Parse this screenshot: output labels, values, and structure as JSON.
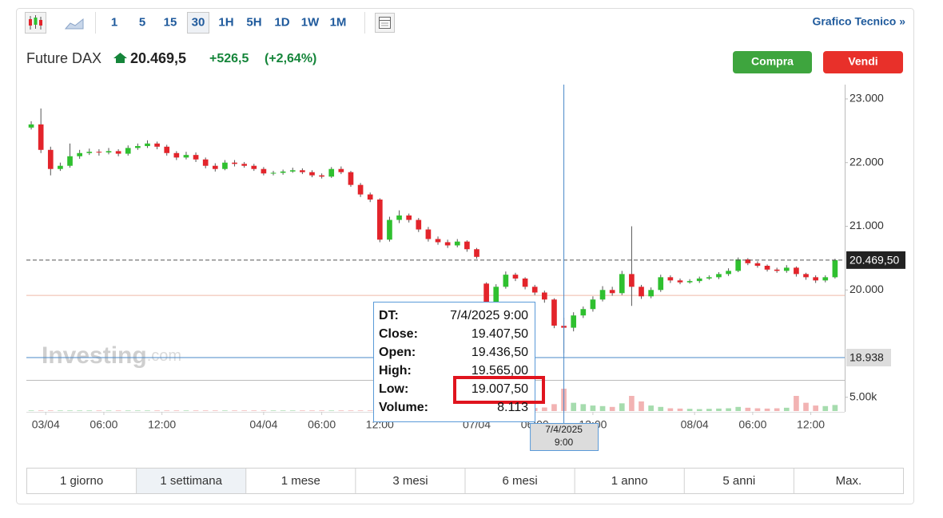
{
  "toolbar": {
    "intervals": [
      "1",
      "5",
      "15",
      "30",
      "1H",
      "5H",
      "1D",
      "1W",
      "1M"
    ],
    "selected_interval": 3,
    "link": "Grafico Tecnico »"
  },
  "header": {
    "name": "Future DAX",
    "price": "20.469,5",
    "change": "+526,5",
    "change_pct": "(+2,64%)",
    "buttons": [
      "Compra",
      "Vendi"
    ]
  },
  "chart_data": {
    "type": "candlestick",
    "x": [
      -1.5,
      -0.5,
      0.5,
      1.5,
      2.5,
      3.5,
      4.5,
      5.5,
      6.5,
      7.5,
      8.5,
      9.5,
      10.5,
      11.5,
      12.5,
      13.5,
      14.5,
      15.5,
      16.5,
      17.5,
      18.5,
      19.5,
      20.5,
      21.5,
      22.5,
      23.5,
      24.5,
      25.5,
      26.5,
      27.5,
      28.5,
      29.5,
      30.5,
      31.5,
      32.5,
      33.5,
      34.5,
      35.5,
      36.5,
      37.5,
      38.5,
      39.5,
      40.5,
      41.5,
      42.5,
      43.5,
      44.5,
      45.5,
      46.5,
      47.5,
      48.5,
      49.5,
      50.5,
      51.5,
      52.5,
      53.5,
      54.5,
      55.5,
      56.5,
      57.5,
      58.5,
      59.5,
      60.5,
      61.5,
      62.5,
      63.5,
      64.5,
      65.5,
      66.5,
      67.5,
      68.5,
      69.5,
      70.5,
      71.5,
      72.5,
      73.5,
      74.5,
      75.5,
      76.5,
      77.5,
      78.5,
      79.5,
      80.5,
      81.5
    ],
    "open": [
      22550,
      22600,
      22200,
      21900,
      21950,
      22100,
      22150,
      22170,
      22160,
      22180,
      22140,
      22230,
      22260,
      22300,
      22250,
      22150,
      22080,
      22120,
      22050,
      21950,
      21900,
      22000,
      21980,
      21950,
      21900,
      21830,
      21840,
      21860,
      21880,
      21850,
      21800,
      21780,
      21900,
      21850,
      21650,
      21500,
      21420,
      20790,
      21100,
      21170,
      21100,
      20950,
      20800,
      20750,
      20700,
      20760,
      20640,
      20100,
      19790,
      20050,
      20240,
      20180,
      20050,
      19960,
      19850,
      19436.5,
      19407.5,
      19600,
      19700,
      19850,
      20000,
      19950,
      20250,
      20050,
      19900,
      20000,
      20200,
      20150,
      20120,
      20140,
      20180,
      20200,
      20250,
      20300,
      20480,
      20420,
      20380,
      20320,
      20300,
      20350,
      20250,
      20200,
      20150,
      20200
    ],
    "high": [
      22650,
      22850,
      22250,
      22000,
      22300,
      22200,
      22220,
      22210,
      22230,
      22210,
      22270,
      22300,
      22350,
      22330,
      22280,
      22180,
      22170,
      22160,
      22080,
      21990,
      22040,
      22040,
      22010,
      21980,
      21930,
      21870,
      21890,
      21920,
      21910,
      21880,
      21830,
      21930,
      21940,
      21870,
      21680,
      21530,
      21440,
      21150,
      21250,
      21200,
      21130,
      20990,
      20840,
      20790,
      20800,
      20780,
      20660,
      20120,
      20090,
      20290,
      20270,
      20200,
      20080,
      19990,
      19870,
      19565,
      19650,
      19740,
      19900,
      20060,
      20050,
      20300,
      21000,
      20080,
      20040,
      20240,
      20230,
      20180,
      20170,
      20210,
      20230,
      20280,
      20340,
      20510,
      20500,
      20450,
      20400,
      20350,
      20390,
      20370,
      20270,
      20230,
      20230,
      20490
    ],
    "low": [
      22520,
      22150,
      21800,
      21870,
      21920,
      22060,
      22120,
      22110,
      22130,
      22100,
      22110,
      22200,
      22230,
      22210,
      22110,
      22040,
      22050,
      22010,
      21910,
      21860,
      21880,
      21940,
      21920,
      21870,
      21800,
      21800,
      21810,
      21840,
      21820,
      21770,
      21750,
      21760,
      21820,
      21620,
      21460,
      21380,
      20750,
      20760,
      21050,
      21060,
      20910,
      20760,
      20710,
      20660,
      20670,
      20600,
      20490,
      19740,
      19760,
      20020,
      20140,
      20010,
      19920,
      19800,
      19400,
      19007.5,
      19350,
      19560,
      19660,
      19820,
      19910,
      19920,
      19750,
      19860,
      19870,
      19970,
      20110,
      20090,
      20100,
      20110,
      20160,
      20170,
      20220,
      20280,
      20390,
      20350,
      20290,
      20270,
      20270,
      20210,
      20160,
      20110,
      20120,
      20180
    ],
    "close": [
      22600,
      22200,
      21900,
      21950,
      22100,
      22150,
      22170,
      22160,
      22180,
      22140,
      22230,
      22260,
      22300,
      22250,
      22150,
      22080,
      22120,
      22050,
      21950,
      21900,
      22000,
      21980,
      21950,
      21900,
      21830,
      21840,
      21860,
      21880,
      21850,
      21800,
      21780,
      21900,
      21850,
      21650,
      21500,
      21420,
      20790,
      21100,
      21170,
      21100,
      20950,
      20800,
      20750,
      20700,
      20760,
      20640,
      20520,
      19790,
      20050,
      20240,
      20180,
      20050,
      19960,
      19850,
      19440,
      19407.5,
      19600,
      19700,
      19850,
      20000,
      19950,
      20250,
      20050,
      19900,
      20000,
      20200,
      20150,
      20120,
      20140,
      20180,
      20200,
      20250,
      20300,
      20480,
      20420,
      20380,
      20320,
      20300,
      20350,
      20250,
      20200,
      20150,
      20200,
      20469.5
    ],
    "volume": [
      200,
      200,
      200,
      200,
      200,
      200,
      200,
      200,
      200,
      200,
      200,
      200,
      200,
      200,
      200,
      200,
      200,
      200,
      200,
      200,
      200,
      200,
      200,
      200,
      200,
      200,
      200,
      200,
      200,
      200,
      200,
      200,
      200,
      200,
      200,
      200,
      200,
      200,
      200,
      200,
      200,
      200,
      200,
      200,
      200,
      200,
      200,
      1500,
      1200,
      1000,
      800,
      900,
      1100,
      1300,
      2500,
      8113,
      3000,
      2500,
      2000,
      1800,
      1500,
      2800,
      5500,
      3500,
      2000,
      1500,
      1000,
      900,
      800,
      700,
      800,
      900,
      1000,
      1500,
      1200,
      1000,
      900,
      1000,
      1200,
      5500,
      3000,
      2000,
      1800,
      2200
    ],
    "colors": {
      "up": "#2fc02f",
      "down": "#e3242b",
      "wick": "#555555",
      "volume_up": "#a6dcae",
      "volume_down": "#f2b3b3"
    },
    "xlim": [
      -2,
      82.5
    ],
    "xticks": [
      {
        "value": 0,
        "label": "03/04"
      },
      {
        "value": 6,
        "label": "06:00"
      },
      {
        "value": 12,
        "label": "12:00"
      },
      {
        "value": 22.5,
        "label": "04/04"
      },
      {
        "value": 28.5,
        "label": "06:00"
      },
      {
        "value": 34.5,
        "label": "12:00"
      },
      {
        "value": 44.5,
        "label": "07/04"
      },
      {
        "value": 50.5,
        "label": "06:00"
      },
      {
        "value": 56.5,
        "label": "12:00"
      },
      {
        "value": 67,
        "label": "08/04"
      },
      {
        "value": 73,
        "label": "06:00"
      },
      {
        "value": 79,
        "label": "12:00"
      }
    ],
    "ylim": [
      18600,
      23225
    ],
    "yticks": [
      {
        "value": 20000,
        "label": "20.000"
      },
      {
        "value": 21000,
        "label": "21.000"
      },
      {
        "value": 22000,
        "label": "22.000"
      },
      {
        "value": 23000,
        "label": "23.000"
      }
    ],
    "volume_ylim": [
      0,
      11000
    ],
    "volume_yticks": [
      {
        "value": 5000,
        "label": "5.00k"
      }
    ],
    "last_price": {
      "value": 20469.5,
      "label": "20.469,50"
    },
    "reference_line": 19915,
    "crosshair": {
      "x": 53.5,
      "y": {
        "value": 18938,
        "label": "18.938"
      },
      "x_label": [
        "7/4/2025",
        "9:00"
      ]
    },
    "tooltip": {
      "rows": [
        [
          "DT:",
          "7/4/2025 9:00"
        ],
        [
          "Close:",
          "19.407,50"
        ],
        [
          "Open:",
          "19.436,50"
        ],
        [
          "High:",
          "19.565,00"
        ],
        [
          "Low:",
          "19.007,50"
        ],
        [
          "Volume:",
          "8.113"
        ]
      ],
      "highlight_row": 4
    },
    "watermark": [
      "Investing",
      ".com"
    ]
  },
  "range_tabs": {
    "items": [
      "1 giorno",
      "1 settimana",
      "1 mese",
      "3 mesi",
      "6 mesi",
      "1 anno",
      "5 anni",
      "Max."
    ],
    "selected": 1
  }
}
